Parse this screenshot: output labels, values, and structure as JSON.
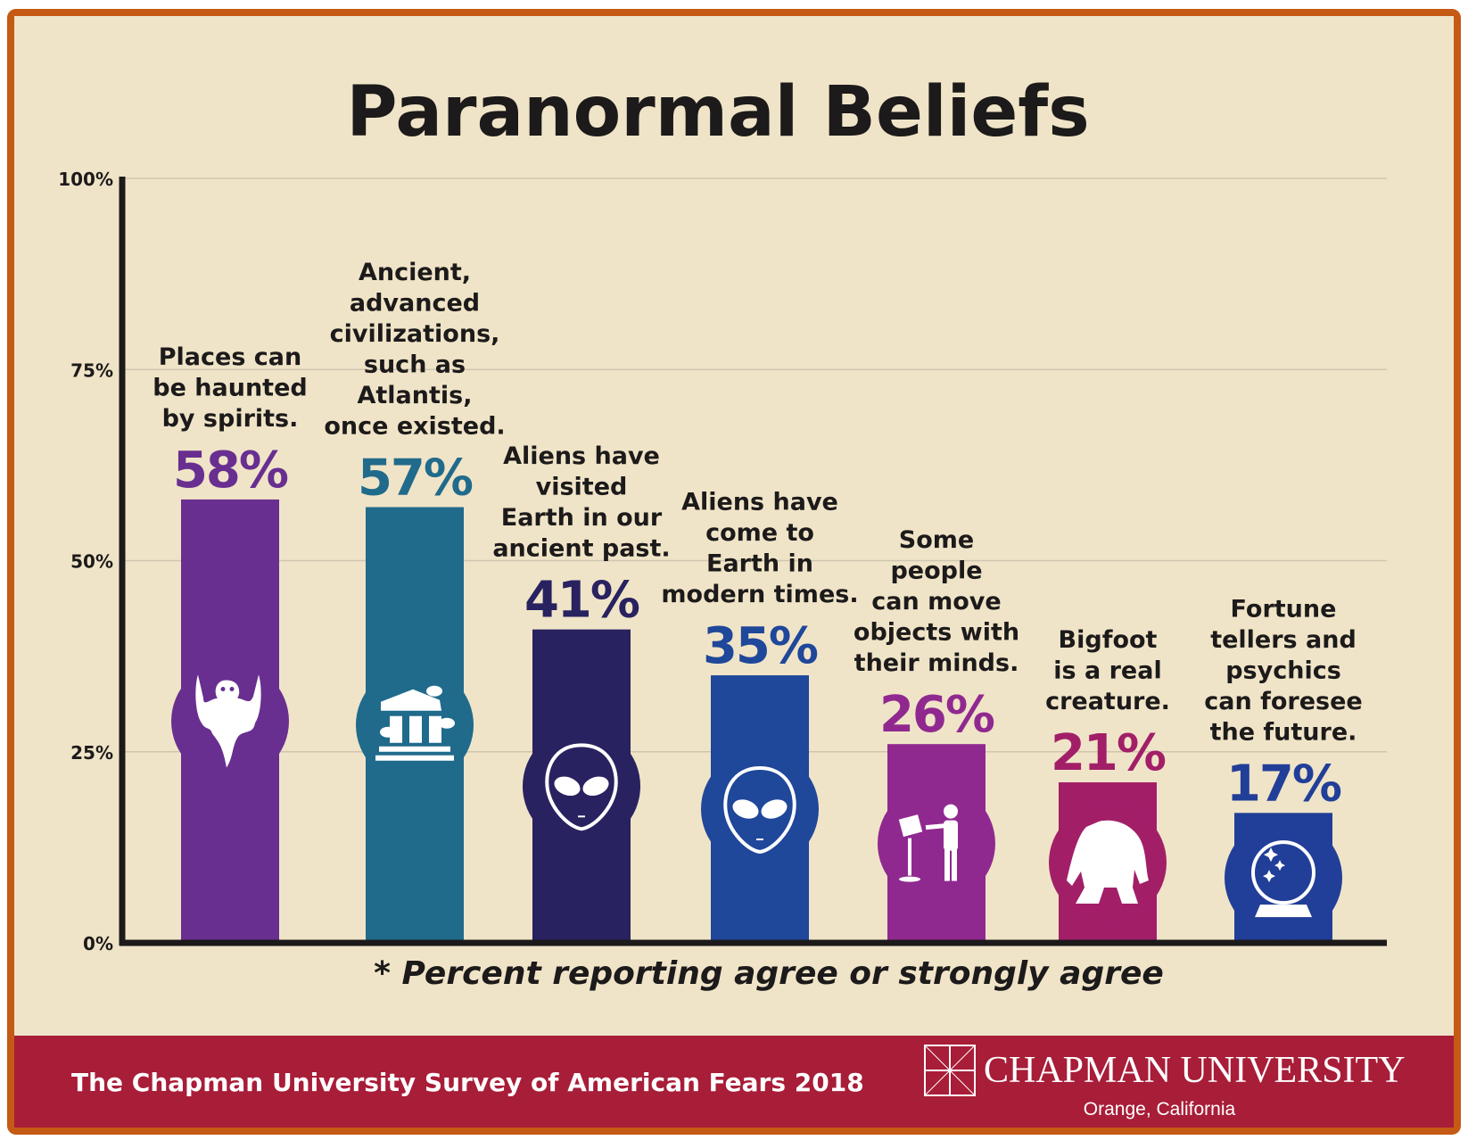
{
  "chart_data": {
    "type": "bar",
    "title": "Paranormal Beliefs",
    "xlabel": "",
    "ylabel": "",
    "ylim": [
      0,
      100
    ],
    "y_ticks": [
      0,
      25,
      50,
      75,
      100
    ],
    "y_tick_labels": [
      "0%",
      "25%",
      "50%",
      "75%",
      "100%"
    ],
    "grid": true,
    "categories": [
      "Places can be haunted by spirits.",
      "Ancient, advanced civilizations, such as Atlantis, once existed.",
      "Aliens have visited Earth in our ancient past.",
      "Aliens have come to Earth in modern times.",
      "Some people can move objects with their minds.",
      "Bigfoot is a real creature.",
      "Fortune tellers and psychics can foresee the future."
    ],
    "category_lines": [
      [
        "Places can",
        "be haunted",
        "by spirits."
      ],
      [
        "Ancient,",
        "advanced",
        "civilizations,",
        "such as",
        "Atlantis,",
        "once existed."
      ],
      [
        "Aliens have",
        "visited",
        "Earth in our",
        "ancient past."
      ],
      [
        "Aliens have",
        "come to",
        "Earth in",
        "modern times."
      ],
      [
        "Some",
        "people",
        "can move",
        "objects with",
        "their minds."
      ],
      [
        "Bigfoot",
        "is a real",
        "creature."
      ],
      [
        "Fortune",
        "tellers and",
        "psychics",
        "can foresee",
        "the future."
      ]
    ],
    "values": [
      58,
      57,
      41,
      35,
      26,
      21,
      17
    ],
    "value_labels": [
      "58%",
      "57%",
      "41%",
      "35%",
      "26%",
      "21%",
      "17%"
    ],
    "colors": [
      "#682f90",
      "#206b8b",
      "#282260",
      "#1f479a",
      "#90298f",
      "#a21f68",
      "#213f98"
    ],
    "icons": [
      "ghost-icon",
      "ruined-temple-icon",
      "alien-icon",
      "alien-icon",
      "telekinesis-icon",
      "bigfoot-icon",
      "crystal-ball-icon"
    ],
    "footnote": "* Percent reporting agree or strongly agree"
  },
  "footer": {
    "survey": "The Chapman University Survey of American Fears 2018",
    "university": "CHAPMAN UNIVERSITY",
    "location": "Orange, California"
  },
  "colors": {
    "background": "#f0e4c8",
    "border": "#c55a14",
    "footer": "#a81d38"
  }
}
